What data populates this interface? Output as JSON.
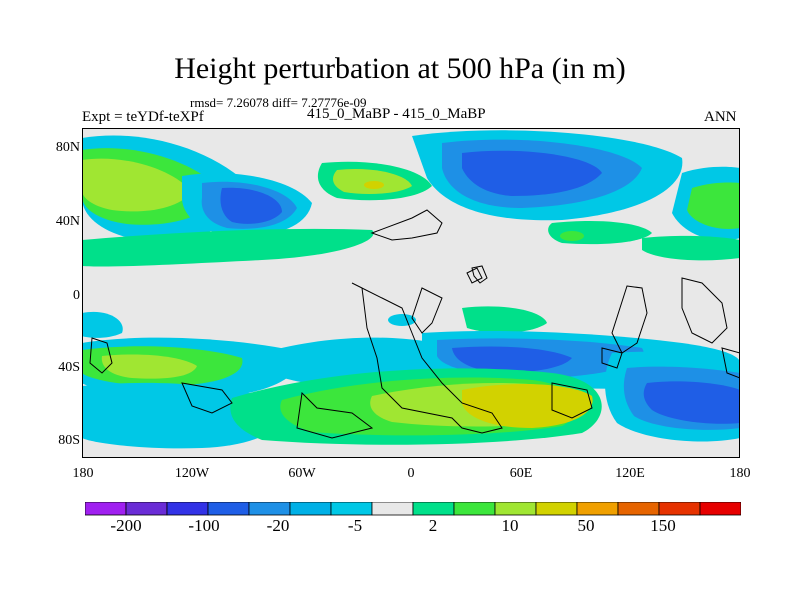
{
  "title": "Height perturbation at 500 hPa (in m)",
  "stats": "rmsd= 7.26078 diff= 7.27776e-09",
  "expt": "Expt = teYDf-teXPf",
  "case_label": "415_0_MaBP - 415_0_MaBP",
  "season": "ANN",
  "lat_ticks": [
    "80N",
    "40N",
    "0",
    "40S",
    "80S"
  ],
  "lon_ticks": [
    "180",
    "120W",
    "60W",
    "0",
    "60E",
    "120E",
    "180"
  ],
  "colorbar": {
    "colors": [
      "#a020f0",
      "#6a2cd6",
      "#3232e6",
      "#1f5ee6",
      "#1e90e6",
      "#00b0e6",
      "#00c8e6",
      "#e8e8e8",
      "#00e08a",
      "#3ce63c",
      "#a0e632",
      "#d2d200",
      "#f0a000",
      "#e66400",
      "#e63200",
      "#e60000"
    ],
    "labels": [
      "-200",
      "-100",
      "-20",
      "-5",
      "2",
      "10",
      "50",
      "150"
    ]
  }
}
